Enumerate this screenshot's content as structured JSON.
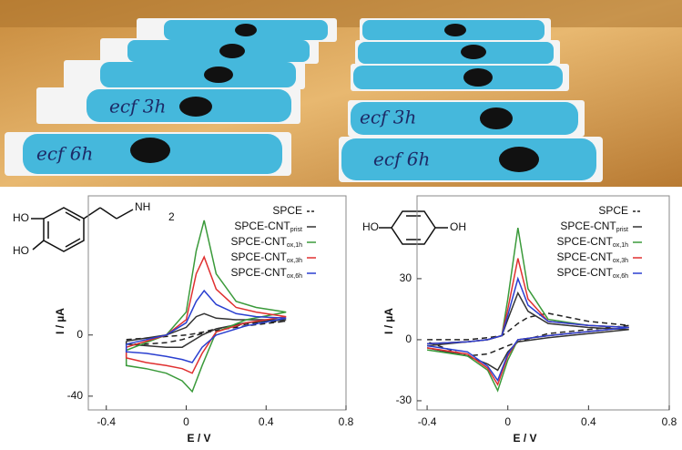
{
  "photo_labels": [
    "ecf 3h",
    "ecf 6h",
    "ecf 3h",
    "ecf 6h"
  ],
  "chart_data": [
    {
      "type": "line",
      "xlabel": "E / V",
      "ylabel": "I / µA",
      "molecule": {
        "labels": [
          "HO",
          "HO",
          "NH"
        ],
        "subscript": "2"
      },
      "xlim": [
        -0.49,
        0.8
      ],
      "ylim": [
        -49,
        91
      ],
      "xticks": [
        -0.4,
        0,
        0.4,
        0.8
      ],
      "yticks": [
        -40,
        0
      ],
      "x": [
        -0.3,
        -0.2,
        -0.1,
        0,
        0.05,
        0.09,
        0.15,
        0.25,
        0.35,
        0.5,
        0.3,
        0.15,
        0.08,
        0.03,
        -0.02,
        -0.1,
        -0.2,
        -0.3,
        -0.3
      ],
      "series": [
        {
          "name": "SPCE",
          "color": "#222222",
          "dashed": true,
          "values": [
            -3,
            -2,
            -1,
            0,
            1,
            2,
            4,
            6,
            8,
            9,
            6,
            3,
            1,
            -1,
            -3,
            -5,
            -6,
            -6,
            -3
          ]
        },
        {
          "name": "SPCE-CNT",
          "subscript": "prist",
          "color": "#333333",
          "dashed": false,
          "values": [
            -4,
            -2,
            0,
            5,
            12,
            14,
            11,
            10,
            10,
            10,
            8,
            4,
            0,
            -4,
            -8,
            -8,
            -7,
            -6,
            -4
          ]
        },
        {
          "name": "SPCE-CNT",
          "subscript": "ox,1h",
          "color": "#3a9a3a",
          "dashed": false,
          "values": [
            -10,
            -5,
            0,
            15,
            55,
            75,
            40,
            22,
            18,
            15,
            10,
            2,
            -20,
            -37,
            -30,
            -25,
            -22,
            -20,
            -10
          ]
        },
        {
          "name": "SPCE-CNT",
          "subscript": "ox,3h",
          "color": "#e03030",
          "dashed": false,
          "values": [
            -8,
            -4,
            0,
            10,
            40,
            51,
            30,
            18,
            15,
            12,
            8,
            2,
            -12,
            -25,
            -22,
            -20,
            -18,
            -15,
            -8
          ]
        },
        {
          "name": "SPCE-CNT",
          "subscript": "ox,6h",
          "color": "#2a3fd0",
          "dashed": false,
          "values": [
            -6,
            -3,
            0,
            8,
            22,
            29,
            20,
            14,
            12,
            11,
            6,
            0,
            -8,
            -18,
            -16,
            -14,
            -12,
            -11,
            -6
          ]
        }
      ]
    },
    {
      "type": "line",
      "xlabel": "E / V",
      "ylabel": "I / µA",
      "molecule": {
        "labels": [
          "HO",
          "OH"
        ]
      },
      "xlim": [
        -0.45,
        0.8
      ],
      "ylim": [
        -34.5,
        70.7
      ],
      "xticks": [
        -0.4,
        0,
        0.4,
        0.8
      ],
      "yticks": [
        -30,
        0,
        30
      ],
      "x": [
        -0.4,
        -0.2,
        -0.1,
        -0.03,
        0,
        0.05,
        0.1,
        0.2,
        0.4,
        0.6,
        0.4,
        0.2,
        0.05,
        0,
        -0.05,
        -0.1,
        -0.2,
        -0.4
      ],
      "series": [
        {
          "name": "SPCE",
          "color": "#222222",
          "dashed": true,
          "values": [
            0,
            0,
            1,
            2,
            4,
            8,
            11,
            13,
            9,
            7,
            5,
            3,
            -1,
            -3,
            -5,
            -7,
            -8,
            -1
          ]
        },
        {
          "name": "SPCE-CNT",
          "subscript": "prist",
          "color": "#333333",
          "dashed": false,
          "values": [
            -3,
            -1,
            0,
            2,
            10,
            23,
            14,
            8,
            6,
            5,
            3,
            1,
            -1,
            -6,
            -15,
            -12,
            -8,
            -4
          ]
        },
        {
          "name": "SPCE-CNT",
          "subscript": "ox,1h",
          "color": "#3a9a3a",
          "dashed": false,
          "values": [
            -2,
            -1,
            0,
            2,
            20,
            55,
            25,
            10,
            7,
            6,
            4,
            2,
            0,
            -10,
            -25,
            -15,
            -8,
            -5
          ]
        },
        {
          "name": "SPCE-CNT",
          "subscript": "ox,3h",
          "color": "#e03030",
          "dashed": false,
          "values": [
            -2,
            -1,
            0,
            2,
            15,
            40,
            20,
            9,
            7,
            6,
            4,
            2,
            0,
            -8,
            -22,
            -14,
            -7,
            -4
          ]
        },
        {
          "name": "SPCE-CNT",
          "subscript": "ox,6h",
          "color": "#2a3fd0",
          "dashed": false,
          "values": [
            -2,
            -1,
            0,
            2,
            12,
            30,
            17,
            9,
            7,
            6,
            4,
            2,
            0,
            -7,
            -20,
            -13,
            -6,
            -3
          ]
        }
      ]
    }
  ]
}
